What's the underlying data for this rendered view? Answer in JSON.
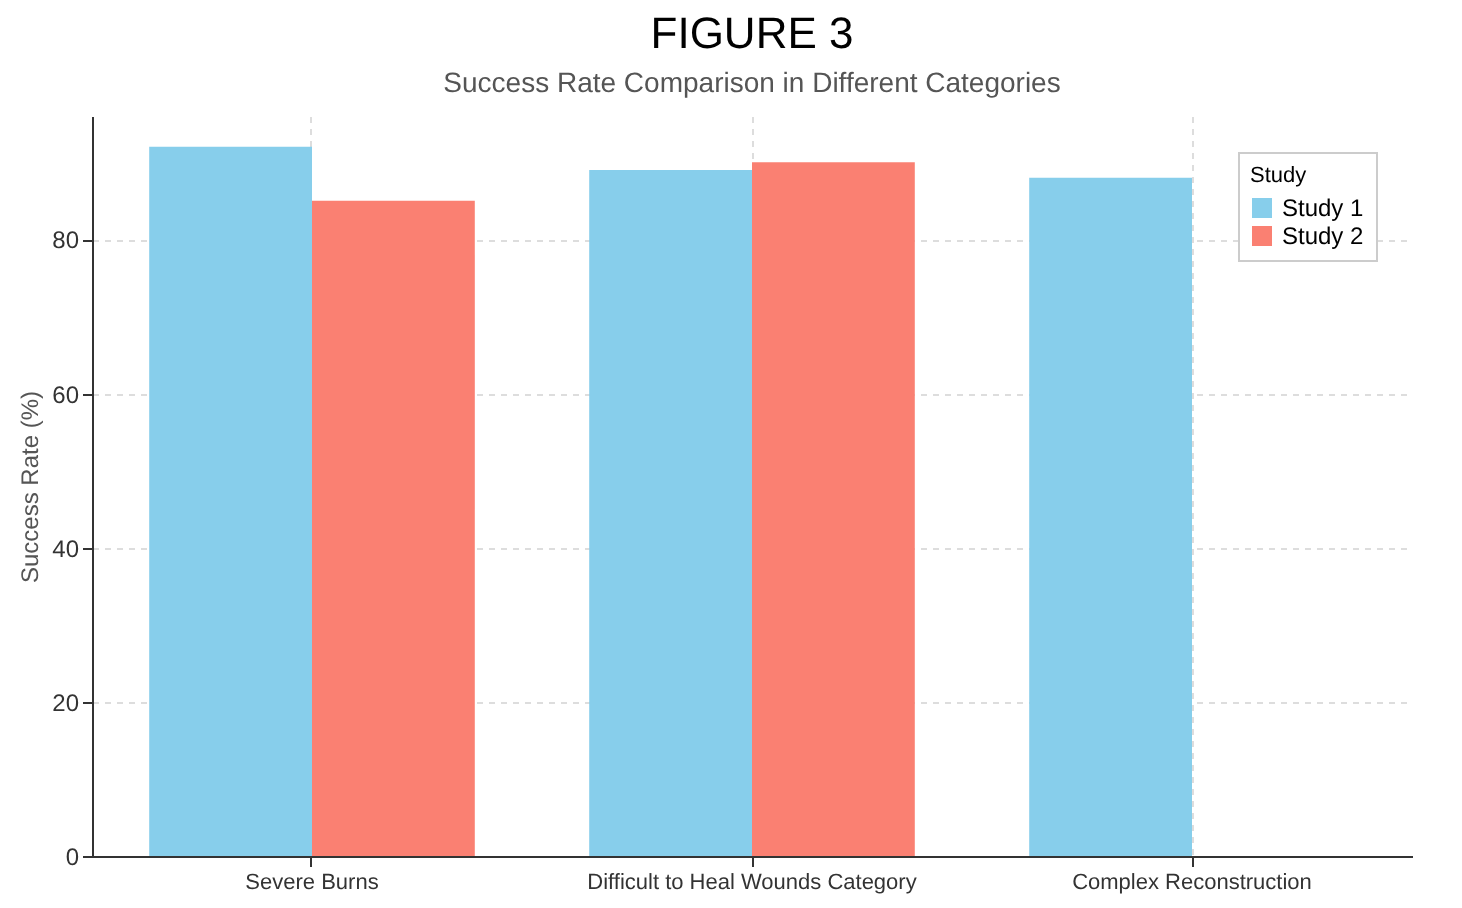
{
  "chart_data": {
    "type": "bar",
    "title": "FIGURE 3",
    "subtitle": "Success Rate Comparison in Different Categories",
    "ylabel": "Success Rate (%)",
    "legend_title": "Study",
    "categories": [
      "Severe Burns",
      "Difficult to Heal Wounds Category",
      "Complex Reconstruction"
    ],
    "series": [
      {
        "name": "Study 1",
        "color": "#87ceeb",
        "values": [
          92,
          89,
          88
        ]
      },
      {
        "name": "Study 2",
        "color": "#fa8072",
        "values": [
          85,
          90,
          null
        ]
      }
    ],
    "ylim": [
      0,
      96
    ],
    "yticks": [
      0,
      20,
      40,
      60,
      80
    ],
    "grid": true,
    "legend": "top right"
  }
}
